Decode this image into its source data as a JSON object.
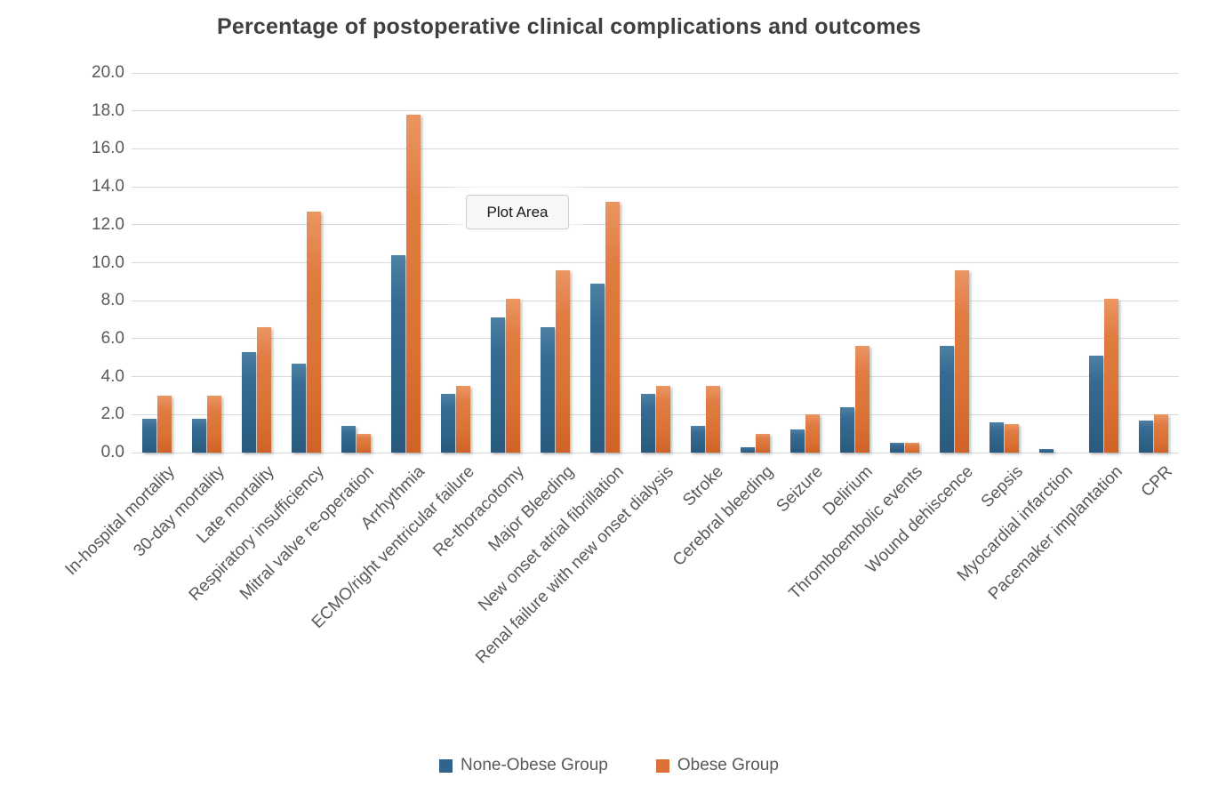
{
  "overlay": {
    "plot_area_label": "Plot Area"
  },
  "colors": {
    "series_none_obese": "#31648C",
    "series_obese": "#DD7038",
    "gridline": "#D9D9D9",
    "axis_text": "#595959",
    "title_text": "#404040",
    "background": "#FFFFFF"
  },
  "chart_data": {
    "type": "bar",
    "title": "Percentage of postoperative clinical complications and outcomes",
    "xlabel": "",
    "ylabel": "",
    "ylim": [
      0,
      20
    ],
    "ytick_step": 2,
    "ytick_labels": [
      "0.0",
      "2.0",
      "4.0",
      "6.0",
      "8.0",
      "10.0",
      "12.0",
      "14.0",
      "16.0",
      "18.0",
      "20.0"
    ],
    "grid": "horizontal-only",
    "legend_position": "bottom",
    "categories": [
      "In-hospital mortality",
      "30-day mortality",
      "Late mortality",
      "Respiratory insufficiency",
      "Mitral valve re-operation",
      "Arrhythmia",
      "ECMO/right ventricular failure",
      "Re-thoracotomy",
      "Major Bleeding",
      "New onset atrial fibrillation",
      "Renal failure with new onset dialysis",
      "Stroke",
      "Cerebral bleeding",
      "Seizure",
      "Delirium",
      "Thromboembolic events",
      "Wound dehiscence",
      "Sepsis",
      "Myocardial infarction",
      "Pacemaker implantation",
      "CPR"
    ],
    "series": [
      {
        "name": "None-Obese Group",
        "color": "#31648C",
        "values": [
          1.8,
          1.8,
          5.3,
          4.7,
          1.4,
          10.4,
          3.1,
          7.1,
          6.6,
          8.9,
          3.1,
          1.4,
          0.3,
          1.2,
          2.4,
          0.5,
          5.6,
          1.6,
          0.2,
          5.1,
          1.7
        ]
      },
      {
        "name": "Obese Group",
        "color": "#DD7038",
        "values": [
          3.0,
          3.0,
          6.6,
          12.7,
          1.0,
          17.8,
          3.5,
          8.1,
          9.6,
          13.2,
          3.5,
          3.5,
          1.0,
          2.0,
          5.6,
          0.5,
          9.6,
          1.5,
          0.0,
          8.1,
          2.0
        ]
      }
    ]
  }
}
